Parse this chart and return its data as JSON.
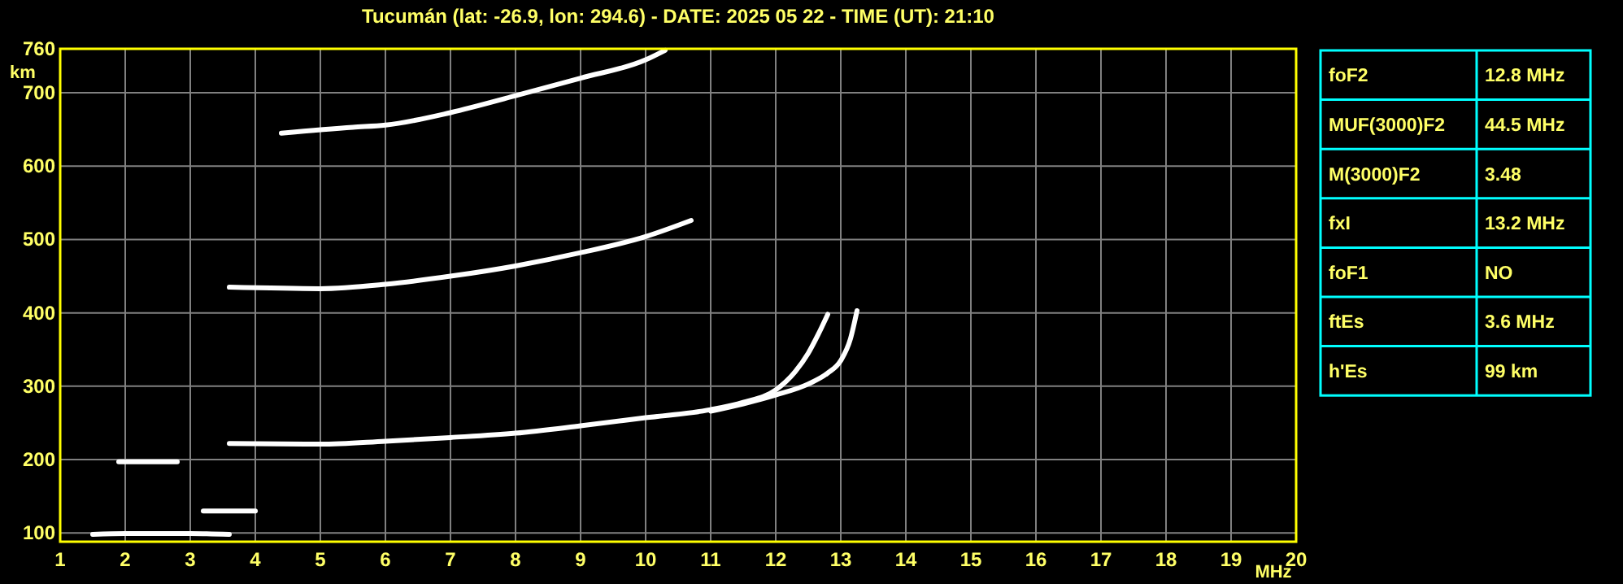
{
  "chart_data": [
    {
      "type": "line",
      "title": "Tucumán (lat: -26.9, lon: 294.6) - DATE: 2025 05 22 - TIME (UT): 21:10",
      "xlabel": "MHz",
      "ylabel": "km",
      "xlim": [
        1,
        20
      ],
      "ylim": [
        88,
        760
      ],
      "xticks": [
        1,
        2,
        3,
        4,
        5,
        6,
        7,
        8,
        9,
        10,
        11,
        12,
        13,
        14,
        15,
        16,
        17,
        18,
        19,
        20
      ],
      "yticks": [
        100,
        200,
        300,
        400,
        500,
        600,
        700,
        760
      ],
      "grid": true,
      "line_style": "solid",
      "marker": "none",
      "series": [
        {
          "color": "#ffffff",
          "x": [
            3.6,
            5,
            6,
            7,
            8,
            9,
            10,
            11,
            11.5,
            12,
            12.3,
            12.5,
            12.65,
            12.8
          ],
          "values": [
            222,
            221,
            225,
            230,
            236,
            246,
            257,
            268,
            278,
            295,
            320,
            345,
            370,
            398
          ]
        },
        {
          "color": "#ffffff",
          "x": [
            11,
            11.5,
            12,
            12.5,
            12.8,
            13,
            13.15,
            13.25
          ],
          "values": [
            266,
            276,
            288,
            303,
            318,
            335,
            365,
            403
          ]
        },
        {
          "color": "#ffffff",
          "x": [
            3.6,
            5,
            6,
            7,
            8,
            9,
            10,
            10.7
          ],
          "values": [
            435,
            433,
            439,
            450,
            464,
            482,
            504,
            526
          ]
        },
        {
          "color": "#ffffff",
          "x": [
            4.4,
            5.5,
            6,
            7,
            8,
            9,
            10,
            10.3
          ],
          "values": [
            645,
            653,
            656,
            673,
            696,
            720,
            745,
            758
          ]
        },
        {
          "color": "#ffffff",
          "x": [
            1.5,
            2,
            3,
            3.6
          ],
          "values": [
            98,
            99,
            99,
            98
          ]
        },
        {
          "color": "#ffffff",
          "x": [
            3.2,
            4
          ],
          "values": [
            130,
            130
          ]
        },
        {
          "color": "#ffffff",
          "x": [
            1.9,
            2.8
          ],
          "values": [
            197,
            197
          ]
        }
      ]
    },
    {
      "type": "other",
      "annotations": [
        "foF2",
        "12.8 MHz",
        "MUF(3000)F2",
        "44.5 MHz",
        "M(3000)F2",
        "3.48",
        "fxI",
        "13.2 MHz",
        "foF1",
        "NO",
        "ftEs",
        "3.6 MHz",
        "h'Es",
        "99 km"
      ]
    }
  ]
}
